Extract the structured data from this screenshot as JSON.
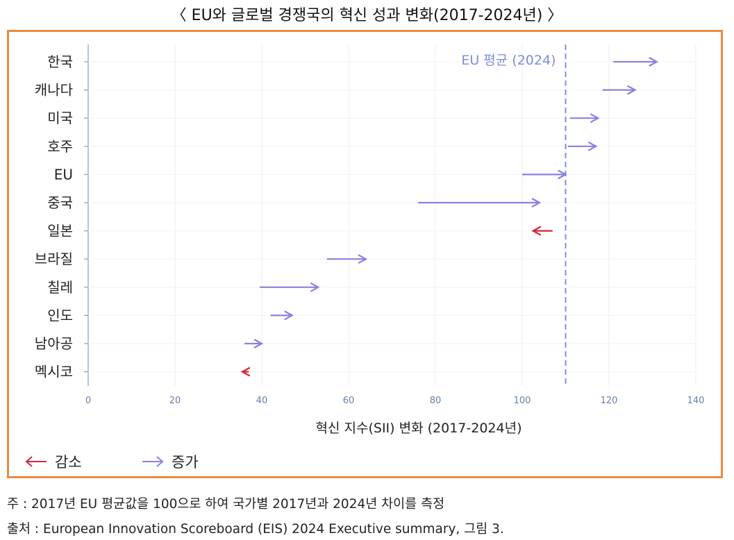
{
  "title": "〈 EU와 글로벌 경쟁국의 혁신 성과 변화(2017-2024년) 〉",
  "chart_data": {
    "type": "arrow-range",
    "xlabel": "혁신 지수(SII) 변화 (2017-2024년)",
    "xlim": [
      0,
      140
    ],
    "xticks": [
      0,
      20,
      40,
      60,
      80,
      100,
      120,
      140
    ],
    "reference_line": {
      "value": 110,
      "label": "EU 평균 (2024)"
    },
    "rows": [
      {
        "country": "한국",
        "start": 121,
        "end": 131
      },
      {
        "country": "캐나다",
        "start": 118.5,
        "end": 126
      },
      {
        "country": "미국",
        "start": 111,
        "end": 117.5
      },
      {
        "country": "호주",
        "start": 110.5,
        "end": 117
      },
      {
        "country": "EU",
        "start": 100,
        "end": 110
      },
      {
        "country": "중국",
        "start": 76,
        "end": 104
      },
      {
        "country": "일본",
        "start": 107,
        "end": 102.5
      },
      {
        "country": "브라질",
        "start": 55,
        "end": 64
      },
      {
        "country": "칠레",
        "start": 39.5,
        "end": 53
      },
      {
        "country": "인도",
        "start": 42,
        "end": 47
      },
      {
        "country": "남아공",
        "start": 36,
        "end": 40
      },
      {
        "country": "멕시코",
        "start": 37,
        "end": 35.5
      }
    ],
    "legend": [
      {
        "label": "감소",
        "color": "#D0283A"
      },
      {
        "label": "증가",
        "color": "#8B7FE0"
      }
    ],
    "grid": true
  },
  "notes": {
    "note1": "주 : 2017년 EU 평균값을 100으로 하여 국가별 2017년과 2024년 차이를 측정",
    "note2": "출처 : European Innovation Scoreboard (EIS) 2024 Executive summary, 그림 3."
  }
}
